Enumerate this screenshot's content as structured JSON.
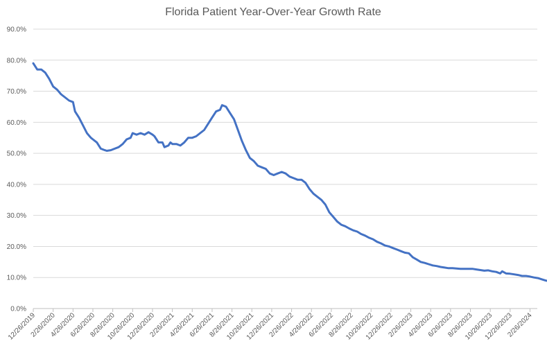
{
  "chart_data": {
    "type": "line",
    "title": "Florida Patient Year-Over-Year Growth Rate",
    "xlabel": "",
    "ylabel": "",
    "ylim": [
      0,
      90
    ],
    "y_ticks": [
      "0.0%",
      "10.0%",
      "20.0%",
      "30.0%",
      "40.0%",
      "50.0%",
      "60.0%",
      "70.0%",
      "80.0%",
      "90.0%"
    ],
    "x_ticks": [
      "12/26/2019",
      "2/26/2020",
      "4/26/2020",
      "6/26/2020",
      "8/26/2020",
      "10/26/2020",
      "12/26/2020",
      "2/26/2021",
      "4/26/2021",
      "6/26/2021",
      "8/26/2021",
      "10/26/2021",
      "12/26/2021",
      "2/26/2022",
      "4/26/2022",
      "6/26/2022",
      "8/26/2022",
      "10/26/2022",
      "12/26/2022",
      "2/26/2023",
      "4/26/2023",
      "6/26/2023",
      "8/26/2023",
      "10/26/2023",
      "12/26/2023",
      "2/26/2024"
    ],
    "grid": true,
    "legend": "none",
    "series_color": "#4472c4",
    "series": [
      {
        "values": [
          [
            0,
            79.0
          ],
          [
            0.2,
            77.0
          ],
          [
            0.4,
            77.0
          ],
          [
            0.6,
            76.0
          ],
          [
            0.8,
            74.0
          ],
          [
            1.0,
            71.5
          ],
          [
            1.2,
            70.5
          ],
          [
            1.4,
            69.0
          ],
          [
            1.6,
            68.0
          ],
          [
            1.8,
            67.0
          ],
          [
            2.0,
            66.5
          ],
          [
            2.1,
            63.5
          ],
          [
            2.3,
            61.5
          ],
          [
            2.5,
            59.0
          ],
          [
            2.7,
            56.5
          ],
          [
            2.9,
            55.0
          ],
          [
            3.0,
            54.5
          ],
          [
            3.2,
            53.5
          ],
          [
            3.4,
            51.5
          ],
          [
            3.6,
            51.0
          ],
          [
            3.7,
            50.8
          ],
          [
            3.9,
            51.0
          ],
          [
            4.1,
            51.5
          ],
          [
            4.3,
            52.0
          ],
          [
            4.5,
            53.0
          ],
          [
            4.7,
            54.5
          ],
          [
            4.9,
            55.0
          ],
          [
            5.0,
            56.5
          ],
          [
            5.2,
            56.0
          ],
          [
            5.4,
            56.5
          ],
          [
            5.6,
            56.0
          ],
          [
            5.8,
            56.8
          ],
          [
            6.0,
            56.0
          ],
          [
            6.1,
            55.5
          ],
          [
            6.3,
            53.5
          ],
          [
            6.5,
            53.5
          ],
          [
            6.6,
            52.0
          ],
          [
            6.8,
            52.5
          ],
          [
            6.9,
            53.5
          ],
          [
            7.0,
            53.0
          ],
          [
            7.2,
            53.0
          ],
          [
            7.4,
            52.5
          ],
          [
            7.6,
            53.5
          ],
          [
            7.8,
            55.0
          ],
          [
            8.0,
            55.0
          ],
          [
            8.2,
            55.5
          ],
          [
            8.4,
            56.5
          ],
          [
            8.6,
            57.5
          ],
          [
            8.8,
            59.5
          ],
          [
            9.0,
            61.5
          ],
          [
            9.2,
            63.5
          ],
          [
            9.4,
            64.0
          ],
          [
            9.5,
            65.5
          ],
          [
            9.7,
            65.0
          ],
          [
            9.9,
            63.0
          ],
          [
            10.1,
            61.0
          ],
          [
            10.3,
            57.5
          ],
          [
            10.5,
            54.0
          ],
          [
            10.7,
            51.0
          ],
          [
            10.9,
            48.5
          ],
          [
            11.1,
            47.5
          ],
          [
            11.3,
            46.0
          ],
          [
            11.5,
            45.5
          ],
          [
            11.7,
            45.0
          ],
          [
            11.9,
            43.5
          ],
          [
            12.1,
            43.0
          ],
          [
            12.3,
            43.5
          ],
          [
            12.5,
            44.0
          ],
          [
            12.7,
            43.5
          ],
          [
            12.9,
            42.5
          ],
          [
            13.1,
            42.0
          ],
          [
            13.3,
            41.5
          ],
          [
            13.5,
            41.5
          ],
          [
            13.7,
            40.5
          ],
          [
            13.9,
            38.5
          ],
          [
            14.1,
            37.0
          ],
          [
            14.3,
            36.0
          ],
          [
            14.5,
            35.0
          ],
          [
            14.7,
            33.5
          ],
          [
            14.9,
            31.0
          ],
          [
            15.1,
            29.5
          ],
          [
            15.3,
            28.0
          ],
          [
            15.5,
            27.0
          ],
          [
            15.7,
            26.5
          ],
          [
            15.9,
            25.8
          ],
          [
            16.1,
            25.2
          ],
          [
            16.3,
            24.8
          ],
          [
            16.5,
            24.0
          ],
          [
            16.7,
            23.5
          ],
          [
            16.9,
            22.8
          ],
          [
            17.1,
            22.3
          ],
          [
            17.3,
            21.5
          ],
          [
            17.5,
            21.0
          ],
          [
            17.7,
            20.3
          ],
          [
            17.9,
            20.0
          ],
          [
            18.1,
            19.5
          ],
          [
            18.3,
            19.0
          ],
          [
            18.5,
            18.5
          ],
          [
            18.7,
            18.0
          ],
          [
            18.9,
            17.8
          ],
          [
            19.1,
            16.5
          ],
          [
            19.3,
            15.8
          ],
          [
            19.5,
            15.0
          ],
          [
            19.7,
            14.7
          ],
          [
            19.9,
            14.3
          ],
          [
            20.1,
            13.9
          ],
          [
            20.3,
            13.7
          ],
          [
            20.5,
            13.4
          ],
          [
            20.7,
            13.2
          ],
          [
            20.9,
            13.0
          ],
          [
            21.1,
            13.0
          ],
          [
            21.3,
            12.9
          ],
          [
            21.5,
            12.8
          ],
          [
            21.7,
            12.8
          ],
          [
            21.9,
            12.8
          ],
          [
            22.1,
            12.8
          ],
          [
            22.3,
            12.6
          ],
          [
            22.5,
            12.4
          ],
          [
            22.7,
            12.2
          ],
          [
            22.9,
            12.3
          ],
          [
            23.1,
            12.0
          ],
          [
            23.3,
            11.8
          ],
          [
            23.5,
            11.3
          ],
          [
            23.6,
            12.0
          ],
          [
            23.8,
            11.3
          ],
          [
            24.0,
            11.2
          ],
          [
            24.2,
            11.0
          ],
          [
            24.4,
            10.8
          ],
          [
            24.6,
            10.5
          ],
          [
            24.8,
            10.5
          ],
          [
            25.0,
            10.3
          ],
          [
            25.2,
            10.0
          ],
          [
            25.4,
            9.8
          ],
          [
            25.6,
            9.4
          ],
          [
            25.8,
            9.0
          ],
          [
            26.0,
            8.8
          ],
          [
            26.2,
            8.5
          ],
          [
            26.3,
            8.0
          ]
        ]
      }
    ]
  }
}
